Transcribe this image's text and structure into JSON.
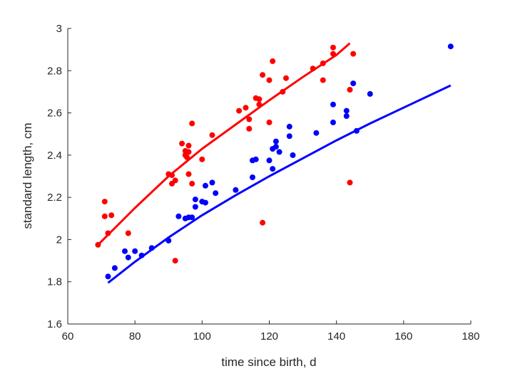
{
  "chart_data": {
    "type": "scatter",
    "title": "",
    "xlabel": "time since birth, d",
    "ylabel": "standard length, cm",
    "xlim": [
      60,
      180
    ],
    "ylim": [
      1.6,
      3
    ],
    "xticks": [
      60,
      80,
      100,
      120,
      140,
      160,
      180
    ],
    "yticks": [
      1.6,
      1.8,
      2,
      2.2,
      2.4,
      2.6,
      2.8,
      3
    ],
    "xtick_labels": [
      "60",
      "80",
      "100",
      "120",
      "140",
      "160",
      "180"
    ],
    "ytick_labels": [
      "1.6",
      "1.8",
      "2",
      "2.2",
      "2.4",
      "2.6",
      "2.8",
      "3"
    ],
    "grid": false,
    "legend": "none",
    "series": [
      {
        "color": "#ff0000",
        "points": [
          [
            69,
            1.975
          ],
          [
            71,
            2.18
          ],
          [
            71,
            2.11
          ],
          [
            72,
            2.03
          ],
          [
            73,
            2.115
          ],
          [
            78,
            2.03
          ],
          [
            90,
            2.31
          ],
          [
            91,
            2.265
          ],
          [
            91,
            2.305
          ],
          [
            92,
            2.28
          ],
          [
            92,
            1.9
          ],
          [
            94,
            2.455
          ],
          [
            95,
            2.4
          ],
          [
            95,
            2.42
          ],
          [
            95.5,
            2.39
          ],
          [
            96,
            2.445
          ],
          [
            96,
            2.31
          ],
          [
            96,
            2.415
          ],
          [
            97,
            2.55
          ],
          [
            97,
            2.265
          ],
          [
            100,
            2.38
          ],
          [
            103,
            2.495
          ],
          [
            111,
            2.61
          ],
          [
            113,
            2.625
          ],
          [
            114,
            2.525
          ],
          [
            114,
            2.57
          ],
          [
            116,
            2.67
          ],
          [
            117,
            2.665
          ],
          [
            117,
            2.64
          ],
          [
            118,
            2.78
          ],
          [
            118,
            2.08
          ],
          [
            120,
            2.755
          ],
          [
            120,
            2.555
          ],
          [
            121,
            2.845
          ],
          [
            124,
            2.7
          ],
          [
            125,
            2.765
          ],
          [
            133,
            2.81
          ],
          [
            136,
            2.835
          ],
          [
            136,
            2.755
          ],
          [
            139,
            2.88
          ],
          [
            139,
            2.91
          ],
          [
            144,
            2.71
          ],
          [
            144,
            2.27
          ],
          [
            145,
            2.88
          ]
        ],
        "fit": [
          [
            69,
            1.975
          ],
          [
            80,
            2.15
          ],
          [
            90,
            2.3
          ],
          [
            100,
            2.43
          ],
          [
            110,
            2.545
          ],
          [
            120,
            2.66
          ],
          [
            130,
            2.77
          ],
          [
            140,
            2.875
          ],
          [
            144,
            2.93
          ]
        ]
      },
      {
        "color": "#0000ff",
        "points": [
          [
            72,
            1.825
          ],
          [
            74,
            1.865
          ],
          [
            77,
            1.945
          ],
          [
            78,
            1.915
          ],
          [
            80,
            1.945
          ],
          [
            82,
            1.925
          ],
          [
            85,
            1.96
          ],
          [
            90,
            1.995
          ],
          [
            93,
            2.11
          ],
          [
            95,
            2.1
          ],
          [
            96,
            2.105
          ],
          [
            97,
            2.105
          ],
          [
            98,
            2.19
          ],
          [
            98,
            2.155
          ],
          [
            100,
            2.18
          ],
          [
            101,
            2.255
          ],
          [
            101,
            2.175
          ],
          [
            103,
            2.27
          ],
          [
            104,
            2.22
          ],
          [
            110,
            2.235
          ],
          [
            115,
            2.295
          ],
          [
            115,
            2.375
          ],
          [
            116,
            2.38
          ],
          [
            120,
            2.375
          ],
          [
            121,
            2.335
          ],
          [
            121,
            2.43
          ],
          [
            122,
            2.465
          ],
          [
            122,
            2.44
          ],
          [
            123,
            2.415
          ],
          [
            126,
            2.535
          ],
          [
            126,
            2.49
          ],
          [
            127,
            2.4
          ],
          [
            134,
            2.505
          ],
          [
            139,
            2.555
          ],
          [
            139,
            2.64
          ],
          [
            143,
            2.61
          ],
          [
            143,
            2.585
          ],
          [
            145,
            2.74
          ],
          [
            146,
            2.515
          ],
          [
            150,
            2.69
          ],
          [
            174,
            2.915
          ]
        ],
        "fit": [
          [
            72,
            1.795
          ],
          [
            80,
            1.895
          ],
          [
            90,
            2.01
          ],
          [
            100,
            2.115
          ],
          [
            110,
            2.21
          ],
          [
            120,
            2.3
          ],
          [
            130,
            2.385
          ],
          [
            140,
            2.47
          ],
          [
            150,
            2.55
          ],
          [
            160,
            2.625
          ],
          [
            174,
            2.73
          ]
        ]
      }
    ]
  }
}
